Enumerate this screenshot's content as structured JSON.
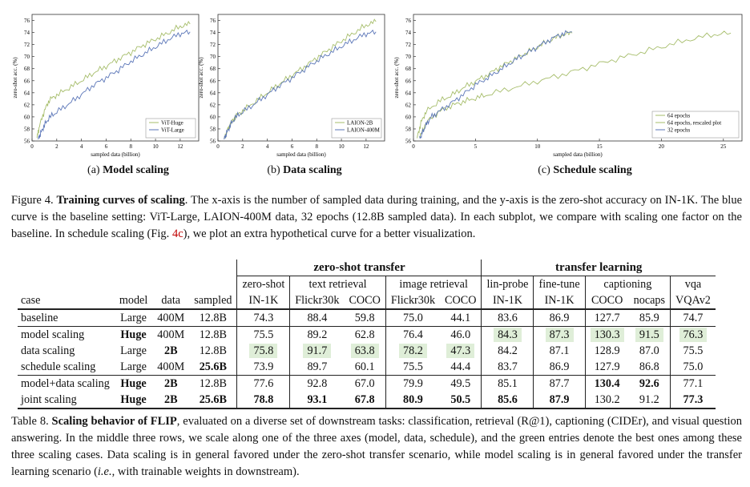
{
  "figure": {
    "y_axis_label": "zero-shot acc. (%)",
    "x_axis_label": "sampled data (billion)",
    "caption_prefix": "Figure 4.",
    "caption_title": "Training curves of scaling",
    "caption_text_1": ". The x-axis is the number of sampled data during training, and the y-axis is the zero-shot accuracy on IN-1K. The blue curve is the baseline setting: ViT-Large, LAION-400M data, 32 epochs (12.8B sampled data). In each subplot, we compare with scaling one factor on the baseline. In schedule scaling (Fig. ",
    "caption_ref": "4c",
    "caption_text_2": "), we plot an extra hypothetical curve for a better visualization.",
    "colors": {
      "blue": "#5b76b8",
      "green": "#a6bd6a"
    }
  },
  "chart_data": [
    {
      "type": "line",
      "subcaption_label": "(a)",
      "subcaption_title": "Model scaling",
      "xlabel": "sampled data (billion)",
      "ylabel": "zero-shot acc. (%)",
      "xlim": [
        0,
        13.5
      ],
      "ylim": [
        56,
        77
      ],
      "xticks": [
        0,
        2,
        4,
        6,
        8,
        10,
        12
      ],
      "yticks": [
        56,
        58,
        60,
        62,
        64,
        66,
        68,
        70,
        72,
        74,
        76
      ],
      "legend_position": "bottom-right",
      "series": [
        {
          "name": "ViT-Huge",
          "color": "#a6bd6a",
          "x": [
            0.4,
            0.6,
            1.0,
            1.4,
            2,
            3,
            4,
            5,
            6,
            7,
            8,
            9,
            10,
            11,
            12,
            12.8
          ],
          "y": [
            56.5,
            58.5,
            61.0,
            62.8,
            63.6,
            64.8,
            66.0,
            67.3,
            68.4,
            69.6,
            70.7,
            71.9,
            72.9,
            73.9,
            75.0,
            75.4
          ]
        },
        {
          "name": "ViT-Large",
          "color": "#5b76b8",
          "x": [
            0.5,
            0.7,
            1.0,
            1.4,
            2,
            3,
            4,
            5,
            6,
            7,
            8,
            9,
            10,
            11,
            12,
            12.8
          ],
          "y": [
            56.3,
            57.3,
            58.6,
            59.9,
            60.8,
            62.2,
            63.7,
            65.3,
            66.5,
            67.8,
            69.2,
            70.4,
            71.6,
            72.8,
            73.8,
            74.1
          ]
        }
      ]
    },
    {
      "type": "line",
      "subcaption_label": "(b)",
      "subcaption_title": "Data scaling",
      "xlabel": "sampled data (billion)",
      "ylabel": "zero-shot acc. (%)",
      "xlim": [
        0,
        13.5
      ],
      "ylim": [
        56,
        77
      ],
      "xticks": [
        0,
        2,
        4,
        6,
        8,
        10,
        12
      ],
      "yticks": [
        56,
        58,
        60,
        62,
        64,
        66,
        68,
        70,
        72,
        74,
        76
      ],
      "legend_position": "bottom-right",
      "series": [
        {
          "name": "LAION-2B",
          "color": "#a6bd6a",
          "x": [
            0.5,
            0.7,
            1.0,
            1.4,
            2,
            3,
            4,
            5,
            6,
            7,
            8,
            9,
            10,
            11,
            12,
            12.8
          ],
          "y": [
            56.3,
            57.4,
            58.8,
            60.0,
            61.0,
            62.5,
            64.0,
            65.5,
            66.9,
            68.3,
            69.8,
            71.2,
            72.6,
            73.9,
            75.2,
            75.8
          ]
        },
        {
          "name": "LAION-400M",
          "color": "#5b76b8",
          "x": [
            0.5,
            0.7,
            1.0,
            1.4,
            2,
            3,
            4,
            5,
            6,
            7,
            8,
            9,
            10,
            11,
            12,
            12.8
          ],
          "y": [
            56.3,
            57.3,
            58.6,
            59.9,
            60.8,
            62.2,
            63.7,
            65.2,
            66.5,
            67.9,
            69.3,
            70.5,
            71.7,
            72.8,
            73.8,
            74.1
          ]
        }
      ]
    },
    {
      "type": "line",
      "subcaption_label": "(c)",
      "subcaption_title": "Schedule scaling",
      "xlabel": "sampled data (billion)",
      "ylabel": "zero-shot acc. (%)",
      "xlim": [
        0,
        26.5
      ],
      "ylim": [
        56,
        77
      ],
      "xticks": [
        0,
        5,
        10,
        15,
        20,
        25
      ],
      "yticks": [
        56,
        58,
        60,
        62,
        64,
        66,
        68,
        70,
        72,
        74,
        76
      ],
      "legend_position": "bottom-right",
      "series": [
        {
          "name": "64 epochs",
          "color": "#a6bd6a",
          "x": [
            0.5,
            1,
            2,
            3,
            4,
            5,
            6,
            8,
            10,
            12,
            14,
            16,
            18,
            20,
            22,
            24,
            25.6
          ],
          "y": [
            56.5,
            59.0,
            60.8,
            61.8,
            62.5,
            63.1,
            63.7,
            64.8,
            65.9,
            67.0,
            68.2,
            69.4,
            70.5,
            71.6,
            72.7,
            73.6,
            73.9
          ]
        },
        {
          "name": "64 epochs, rescaled plot",
          "color": "#a6bd6a",
          "x": [
            0.3,
            0.6,
            1.0,
            2,
            3,
            4,
            5,
            6,
            7,
            8,
            9,
            10,
            11,
            12,
            12.8
          ],
          "y": [
            56.5,
            59.0,
            60.8,
            62.5,
            63.5,
            64.8,
            65.9,
            67.0,
            68.3,
            69.4,
            70.5,
            71.6,
            72.7,
            73.6,
            73.9
          ]
        },
        {
          "name": "32 epochs",
          "color": "#5b76b8",
          "x": [
            0.5,
            0.7,
            1.0,
            1.4,
            2,
            3,
            4,
            5,
            6,
            7,
            8,
            9,
            10,
            11,
            12,
            12.8
          ],
          "y": [
            56.3,
            57.3,
            58.6,
            59.9,
            60.8,
            62.2,
            63.7,
            65.3,
            66.5,
            67.8,
            69.2,
            70.4,
            71.6,
            72.8,
            73.8,
            74.1
          ]
        }
      ]
    }
  ],
  "table": {
    "group_zero_shot": "zero-shot transfer",
    "group_transfer": "transfer learning",
    "h2": {
      "zero_shot": "zero-shot",
      "text_retrieval": "text retrieval",
      "image_retrieval": "image retrieval",
      "lin_probe": "lin-probe",
      "fine_tune": "fine-tune",
      "captioning": "captioning",
      "vqa": "vqa"
    },
    "h3": [
      "case",
      "model",
      "data",
      "sampled",
      "IN-1K",
      "Flickr30k",
      "COCO",
      "Flickr30k",
      "COCO",
      "IN-1K",
      "IN-1K",
      "COCO",
      "nocaps",
      "VQAv2"
    ],
    "rows": [
      {
        "cells": [
          "baseline",
          "Large",
          "400M",
          "12.8B",
          "74.3",
          "88.4",
          "59.8",
          "75.0",
          "44.1",
          "83.6",
          "86.9",
          "127.7",
          "85.9",
          "74.7"
        ]
      },
      {
        "cells": [
          "model scaling",
          "Huge",
          "400M",
          "12.8B",
          "75.5",
          "89.2",
          "62.8",
          "76.4",
          "46.0",
          "84.3",
          "87.3",
          "130.3",
          "91.5",
          "76.3"
        ]
      },
      {
        "cells": [
          "data scaling",
          "Large",
          "2B",
          "12.8B",
          "75.8",
          "91.7",
          "63.8",
          "78.2",
          "47.3",
          "84.2",
          "87.1",
          "128.9",
          "87.0",
          "75.5"
        ]
      },
      {
        "cells": [
          "schedule scaling",
          "Large",
          "400M",
          "25.6B",
          "73.9",
          "89.7",
          "60.1",
          "75.5",
          "44.4",
          "83.7",
          "86.9",
          "127.9",
          "86.8",
          "75.0"
        ]
      },
      {
        "cells": [
          "model+data scaling",
          "Huge",
          "2B",
          "12.8B",
          "77.6",
          "92.8",
          "67.0",
          "79.9",
          "49.5",
          "85.1",
          "87.7",
          "130.4",
          "92.6",
          "77.1"
        ]
      },
      {
        "cells": [
          "joint scaling",
          "Huge",
          "2B",
          "25.6B",
          "78.8",
          "93.1",
          "67.8",
          "80.9",
          "50.5",
          "85.6",
          "87.9",
          "130.2",
          "91.2",
          "77.3"
        ]
      }
    ],
    "caption_prefix": "Table 8.",
    "caption_title": "Scaling behavior of FLIP",
    "caption_text_1": ", evaluated on a diverse set of downstream tasks: classification, retrieval (R@1), captioning (CIDEr), and visual question answering. In the middle three rows, we scale along one of the three axes (model, data, schedule), and the green entries denote the best ones among these three scaling cases. Data scaling is in general favored under the zero-shot transfer scenario, while model scaling is in general favored under the transfer learning scenario (",
    "caption_ie": "i.e.",
    "caption_text_2": ", with trainable weights in downstream)."
  }
}
